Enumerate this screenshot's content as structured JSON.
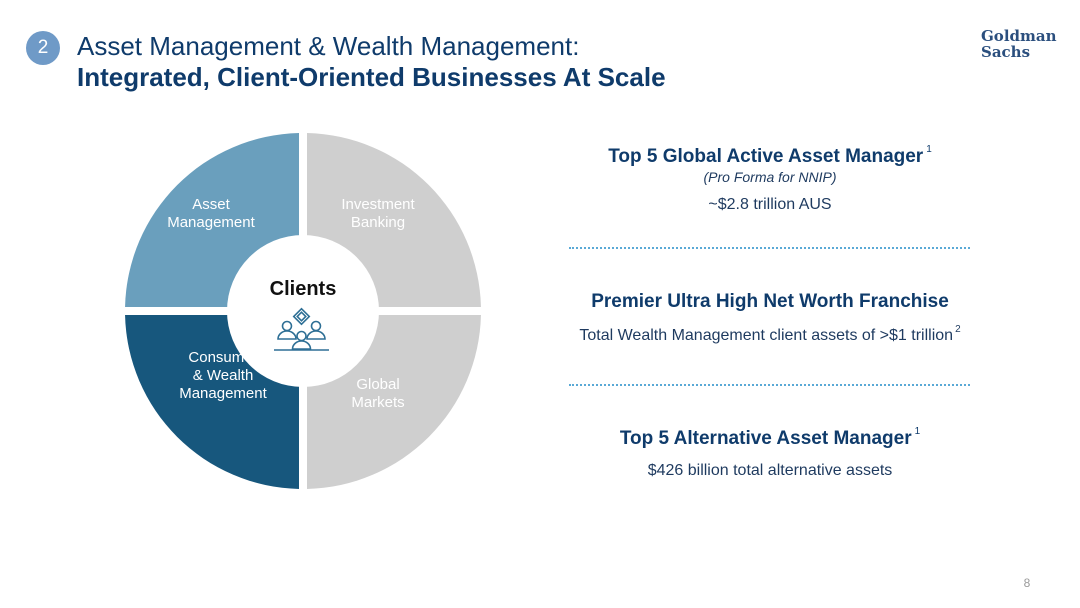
{
  "header": {
    "section_number": "2",
    "title_line1": "Asset Management & Wealth Management:",
    "title_line2": "Integrated, Client-Oriented Businesses At Scale",
    "logo_line1": "Goldman",
    "logo_line2": "Sachs"
  },
  "diagram": {
    "center_label": "Clients",
    "center_icon": "people-group-icon",
    "quadrants": [
      {
        "id": "asset-management",
        "lines": [
          "Asset",
          "Management"
        ],
        "color": "#6a9fbd",
        "text_color": "#ffffff"
      },
      {
        "id": "investment-banking",
        "lines": [
          "Investment",
          "Banking"
        ],
        "color": "#cfcfcf",
        "text_color": "#ffffff"
      },
      {
        "id": "global-markets",
        "lines": [
          "Global",
          "Markets"
        ],
        "color": "#cfcfcf",
        "text_color": "#ffffff"
      },
      {
        "id": "consumer-wealth-management",
        "lines": [
          "Consumer",
          "& Wealth",
          "Management"
        ],
        "color": "#17577d",
        "text_color": "#ffffff"
      }
    ]
  },
  "highlights": [
    {
      "title": "Top 5 Global Active Asset Manager",
      "footnote": "1",
      "note": "(Pro Forma for NNIP)",
      "detail": "~$2.8 trillion AUS",
      "detail_footnote": ""
    },
    {
      "title": "Premier Ultra High Net Worth Franchise",
      "footnote": "",
      "note": "",
      "detail": "Total Wealth Management client assets of >$1 trillion",
      "detail_footnote": "2"
    },
    {
      "title": "Top 5 Alternative Asset Manager",
      "footnote": "1",
      "note": "",
      "detail": "$426 billion total alternative assets",
      "detail_footnote": ""
    }
  ],
  "footer": {
    "page_number": "8"
  },
  "colors": {
    "title": "#0f3b6b",
    "badge": "#6f9ac7",
    "divider": "#5aa9d6",
    "icon": "#2e6f95"
  }
}
